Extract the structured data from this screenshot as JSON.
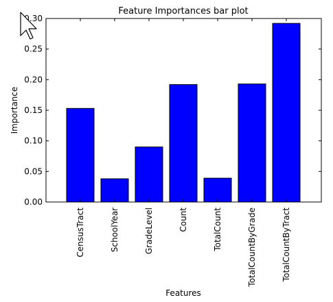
{
  "chart_data": {
    "type": "bar",
    "title": "Feature Importances bar plot",
    "xlabel": "Features",
    "ylabel": "Importance",
    "categories": [
      "CensusTract",
      "SchoolYear",
      "GradeLevel",
      "Count",
      "TotalCount",
      "TotalCountByGrade",
      "TotalCountByTract"
    ],
    "values": [
      0.153,
      0.038,
      0.09,
      0.192,
      0.039,
      0.193,
      0.292
    ],
    "ylim": [
      0,
      0.3
    ],
    "yticks": [
      "0.00",
      "0.05",
      "0.10",
      "0.15",
      "0.20",
      "0.25",
      "0.30"
    ],
    "bar_color": "#0000ff",
    "grid": false
  },
  "cursor_icon": "mouse-pointer-icon"
}
